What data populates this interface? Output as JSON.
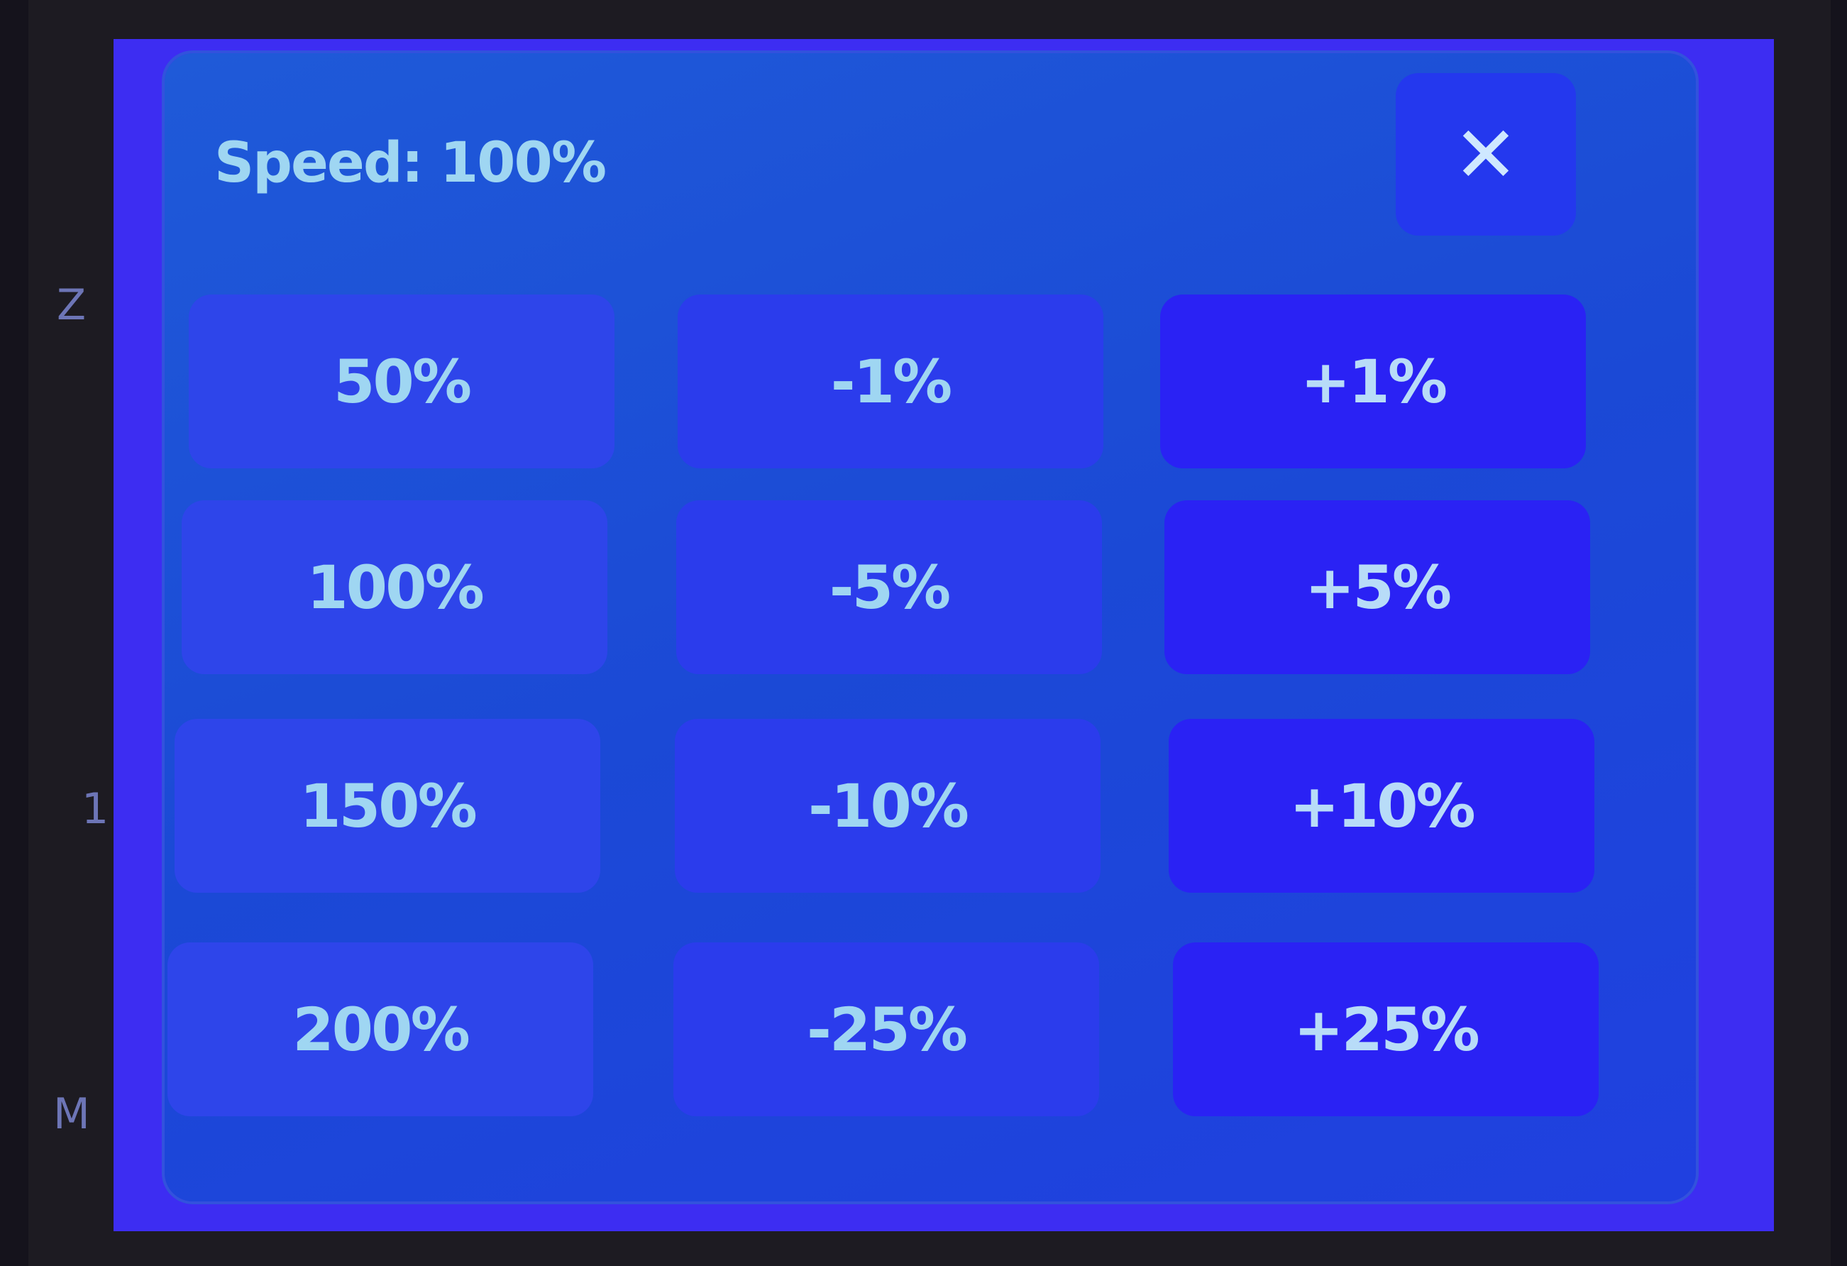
{
  "background_labels": [
    "Z",
    "1",
    "M"
  ],
  "dialog": {
    "title": "Speed: 100%",
    "close_icon": "close-x-icon",
    "close_glyph": "✕",
    "buttons": [
      [
        "50%",
        "-1%",
        "+1%"
      ],
      [
        "100%",
        "-5%",
        "+5%"
      ],
      [
        "150%",
        "-10%",
        "+10%"
      ],
      [
        "200%",
        "-25%",
        "+25%"
      ]
    ]
  },
  "colors": {
    "screen": "#3d2df2",
    "dialog": "#1b49d6",
    "text": "#9fd6f2"
  }
}
